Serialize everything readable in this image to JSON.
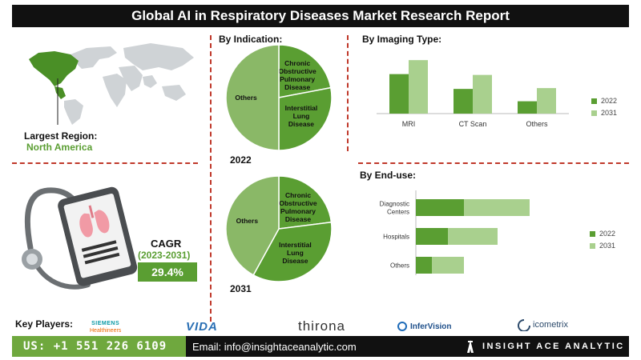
{
  "title": "Global AI in Respiratory Diseases Market Research Report",
  "region": {
    "label": "Largest Region:",
    "value": "North America"
  },
  "cagr": {
    "label": "CAGR",
    "period": "(2023-2031)",
    "value": "29.4%"
  },
  "colors": {
    "dark_green": "#5a9e32",
    "light_green": "#a9d08e",
    "pie_green": "#8ab867",
    "footer_green": "#6fa83e",
    "accent_red": "#c0392b"
  },
  "chart_data": [
    {
      "type": "pie",
      "title": "By  Indication:",
      "caption": "2022",
      "labels": [
        "Others",
        "Chronic Obstructive Pulmonary Disease",
        "Interstitial Lung Disease"
      ],
      "display_labels": [
        [
          "Others"
        ],
        [
          "Chronic",
          "Obstructive",
          "Pulmonary",
          "Disease"
        ],
        [
          "Interstitial",
          "Lung",
          "Disease"
        ]
      ],
      "values": [
        50,
        22,
        28
      ]
    },
    {
      "type": "pie",
      "caption": "2031",
      "labels": [
        "Others",
        "Chronic Obstructive Pulmonary Disease",
        "Interstitial Lung Disease"
      ],
      "display_labels": [
        [
          "Others"
        ],
        [
          "Chronic",
          "Obstructive",
          "Pulmonary",
          "Disease"
        ],
        [
          "Interstitial",
          "Lung",
          "Disease"
        ]
      ],
      "values": [
        42,
        23,
        35
      ]
    },
    {
      "type": "bar",
      "title": "By Imaging Type:",
      "orientation": "vertical",
      "categories": [
        "MRI",
        "CT Scan",
        "Others"
      ],
      "series": [
        {
          "name": "2022",
          "values": [
            48,
            30,
            15
          ]
        },
        {
          "name": "2031",
          "values": [
            65,
            47,
            31
          ]
        }
      ],
      "ylim": [
        0,
        70
      ],
      "grid": false,
      "legend": "right"
    },
    {
      "type": "bar",
      "title": "By End-use:",
      "orientation": "horizontal",
      "stacked": true,
      "categories": [
        "Diagnostic Centers",
        "Hospitals",
        "Others"
      ],
      "display_categories": [
        [
          "Diagnostic",
          "Centers"
        ],
        [
          "Hospitals"
        ],
        [
          "Others"
        ]
      ],
      "series": [
        {
          "name": "2022",
          "values": [
            30,
            20,
            10
          ]
        },
        {
          "name": "2031",
          "values": [
            41,
            31,
            20
          ]
        }
      ],
      "xlim": [
        0,
        80
      ],
      "grid": false,
      "legend": "right"
    }
  ],
  "key_players": {
    "label": "Key Players:",
    "logos": [
      "SIEMENS",
      "Healthineers",
      "VIDA",
      "thirona",
      "InferVision",
      "icometrix"
    ]
  },
  "footer": {
    "phone": "US: +1 551 226 6109",
    "email": "Email: info@insightaceanalytic.com",
    "brand": "INSIGHT ACE ANALYTIC"
  }
}
